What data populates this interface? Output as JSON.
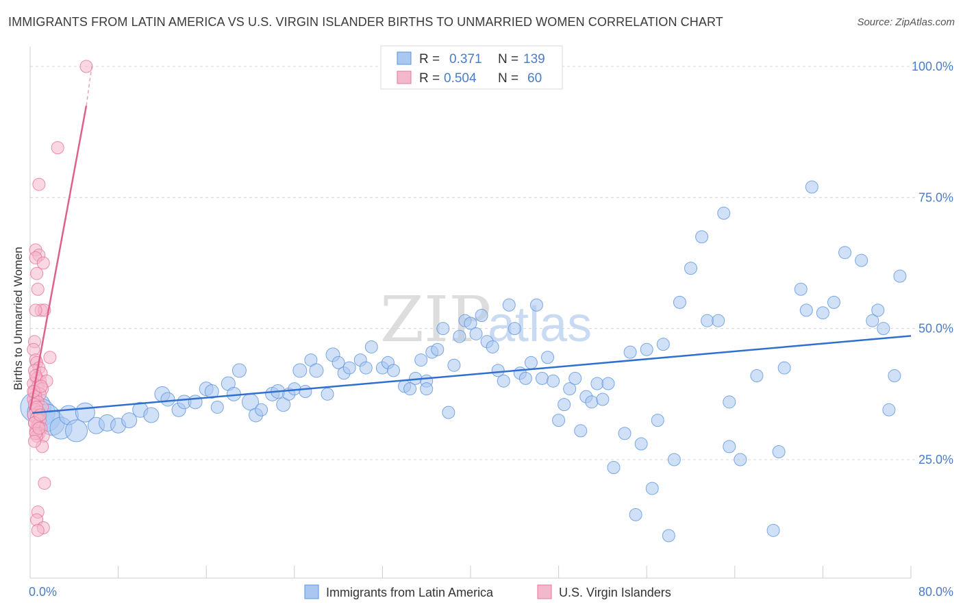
{
  "header": {
    "title": "IMMIGRANTS FROM LATIN AMERICA VS U.S. VIRGIN ISLANDER BIRTHS TO UNMARRIED WOMEN CORRELATION CHART",
    "source": "Source: ZipAtlas.com"
  },
  "watermark": {
    "zip": "ZIP",
    "atlas": "atlas"
  },
  "colors": {
    "blue": "#5b93e0",
    "blue_fill": "#a9c7f0",
    "pink": "#e8739a",
    "pink_fill": "#f4b8cc",
    "tick": "#4a7cc7"
  },
  "legend": {
    "r_label": "R =",
    "n_label": "N =",
    "rows": [
      {
        "r": "0.371",
        "n": "139"
      },
      {
        "r": "0.504",
        "n": "60"
      }
    ]
  },
  "chart_data": {
    "type": "scatter",
    "title": "IMMIGRANTS FROM LATIN AMERICA VS U.S. VIRGIN ISLANDER BIRTHS TO UNMARRIED WOMEN CORRELATION CHART",
    "ylabel": "Births to Unmarried Women",
    "xlim": [
      0,
      80
    ],
    "ylim": [
      0,
      100
    ],
    "x_tick_labels": [
      "0.0%",
      "80.0%"
    ],
    "y_tick_labels": [
      "25.0%",
      "50.0%",
      "75.0%",
      "100.0%"
    ],
    "y_ticks": [
      25,
      50,
      75,
      100
    ],
    "grid": true,
    "legend_placement": "top-center",
    "series": [
      {
        "name": "Immigrants from Latin America",
        "r": 0.371,
        "n": 139,
        "trend": [
          [
            0.2,
            33.9
          ],
          [
            80,
            48.6
          ]
        ],
        "points": [
          [
            0.5,
            35.0,
            22
          ],
          [
            1.0,
            34.0,
            20
          ],
          [
            1.5,
            33.0,
            20
          ],
          [
            2.0,
            32.0,
            18
          ],
          [
            2.8,
            31.0,
            16
          ],
          [
            3.5,
            33.5,
            14
          ],
          [
            4.2,
            30.5,
            16
          ],
          [
            5.0,
            34.0,
            14
          ],
          [
            6.0,
            31.5,
            12
          ],
          [
            7.0,
            32.0,
            12
          ],
          [
            8.0,
            31.5,
            11
          ],
          [
            9.0,
            32.5,
            11
          ],
          [
            10.0,
            34.5,
            11
          ],
          [
            11.0,
            33.5,
            11
          ],
          [
            12.0,
            37.5,
            11
          ],
          [
            12.5,
            36.5,
            10
          ],
          [
            13.5,
            34.5,
            10
          ],
          [
            14.0,
            36.0,
            10
          ],
          [
            15.0,
            36.0,
            10
          ],
          [
            16.0,
            38.5,
            10
          ],
          [
            16.5,
            38.0,
            10
          ],
          [
            17.0,
            35.0,
            9
          ],
          [
            18.0,
            39.5,
            10
          ],
          [
            19.0,
            42.0,
            10
          ],
          [
            18.5,
            37.5,
            10
          ],
          [
            20.0,
            36.0,
            12
          ],
          [
            20.5,
            33.5,
            10
          ],
          [
            21.0,
            34.5,
            9
          ],
          [
            22.0,
            37.5,
            10
          ],
          [
            22.5,
            38.0,
            10
          ],
          [
            23.0,
            35.5,
            10
          ],
          [
            23.5,
            37.5,
            9
          ],
          [
            24.0,
            38.5,
            9
          ],
          [
            25.0,
            38.0,
            9
          ],
          [
            24.5,
            42.0,
            10
          ],
          [
            25.5,
            44.0,
            9
          ],
          [
            26.0,
            42.0,
            10
          ],
          [
            27.0,
            37.5,
            9
          ],
          [
            27.5,
            45.0,
            10
          ],
          [
            28.0,
            43.5,
            9
          ],
          [
            28.5,
            41.5,
            9
          ],
          [
            29.0,
            42.5,
            9
          ],
          [
            30.0,
            44.0,
            9
          ],
          [
            30.5,
            42.5,
            9
          ],
          [
            31.0,
            46.5,
            9
          ],
          [
            32.0,
            42.5,
            9
          ],
          [
            32.5,
            43.5,
            9
          ],
          [
            33.0,
            42.0,
            9
          ],
          [
            34.0,
            39.0,
            9
          ],
          [
            34.5,
            38.5,
            9
          ],
          [
            35.0,
            40.5,
            9
          ],
          [
            35.5,
            44.0,
            9
          ],
          [
            36.0,
            40.0,
            9
          ],
          [
            36.5,
            45.5,
            9
          ],
          [
            37.0,
            46.0,
            9
          ],
          [
            36.0,
            38.5,
            9
          ],
          [
            38.0,
            34.0,
            9
          ],
          [
            37.5,
            50.0,
            9
          ],
          [
            38.5,
            43.0,
            9
          ],
          [
            39.0,
            48.5,
            9
          ],
          [
            39.5,
            51.5,
            9
          ],
          [
            40.0,
            51.0,
            9
          ],
          [
            40.5,
            49.0,
            9
          ],
          [
            41.0,
            52.5,
            9
          ],
          [
            41.5,
            47.5,
            9
          ],
          [
            42.0,
            46.5,
            9
          ],
          [
            42.5,
            42.0,
            9
          ],
          [
            43.0,
            40.0,
            9
          ],
          [
            43.5,
            54.5,
            9
          ],
          [
            44.0,
            50.0,
            9
          ],
          [
            44.5,
            41.5,
            9
          ],
          [
            45.0,
            40.5,
            9
          ],
          [
            45.5,
            43.5,
            9
          ],
          [
            46.0,
            54.5,
            9
          ],
          [
            46.5,
            40.5,
            9
          ],
          [
            47.0,
            44.5,
            9
          ],
          [
            47.5,
            40.0,
            9
          ],
          [
            48.0,
            32.5,
            9
          ],
          [
            48.5,
            35.5,
            9
          ],
          [
            49.0,
            38.5,
            9
          ],
          [
            49.5,
            40.5,
            9
          ],
          [
            50.0,
            30.5,
            9
          ],
          [
            50.5,
            37.0,
            9
          ],
          [
            51.0,
            36.0,
            9
          ],
          [
            51.5,
            39.5,
            9
          ],
          [
            52.0,
            36.5,
            9
          ],
          [
            52.5,
            39.5,
            9
          ],
          [
            53.0,
            23.5,
            9
          ],
          [
            54.0,
            30.0,
            9
          ],
          [
            54.5,
            45.5,
            9
          ],
          [
            55.0,
            14.5,
            9
          ],
          [
            55.5,
            28.0,
            9
          ],
          [
            56.0,
            46.0,
            9
          ],
          [
            56.5,
            19.5,
            9
          ],
          [
            57.0,
            32.5,
            9
          ],
          [
            57.5,
            47.0,
            9
          ],
          [
            58.0,
            10.5,
            9
          ],
          [
            58.5,
            25.0,
            9
          ],
          [
            59.0,
            55.0,
            9
          ],
          [
            60.0,
            61.5,
            9
          ],
          [
            61.0,
            67.5,
            9
          ],
          [
            61.5,
            51.5,
            9
          ],
          [
            62.5,
            51.5,
            9
          ],
          [
            63.0,
            72.0,
            9
          ],
          [
            63.5,
            27.5,
            9
          ],
          [
            63.5,
            36.0,
            9
          ],
          [
            64.5,
            25.0,
            9
          ],
          [
            66.0,
            41.0,
            9
          ],
          [
            67.5,
            11.5,
            9
          ],
          [
            68.0,
            26.5,
            9
          ],
          [
            68.5,
            42.5,
            9
          ],
          [
            70.0,
            57.5,
            9
          ],
          [
            70.5,
            53.5,
            9
          ],
          [
            71.0,
            77.0,
            9
          ],
          [
            72.0,
            53.0,
            9
          ],
          [
            73.0,
            55.0,
            9
          ],
          [
            74.0,
            64.5,
            9
          ],
          [
            75.5,
            63.0,
            9
          ],
          [
            76.5,
            51.5,
            9
          ],
          [
            77.0,
            53.5,
            9
          ],
          [
            77.5,
            50.0,
            9
          ],
          [
            78.0,
            34.5,
            9
          ],
          [
            78.5,
            41.0,
            9
          ],
          [
            79.0,
            60.0,
            9
          ]
        ]
      },
      {
        "name": "U.S. Virgin Islanders",
        "r": 0.504,
        "n": 60,
        "trend": [
          [
            0.0,
            34.5
          ],
          [
            5.1,
            92.5
          ]
        ],
        "trend_ext": [
          [
            5.1,
            92.5
          ],
          [
            5.6,
            100
          ]
        ],
        "points": [
          [
            5.1,
            100,
            9
          ],
          [
            2.5,
            84.5,
            9
          ],
          [
            0.8,
            77.5,
            9
          ],
          [
            0.5,
            65,
            9
          ],
          [
            0.8,
            64,
            9
          ],
          [
            0.5,
            63.5,
            9
          ],
          [
            1.2,
            62.5,
            9
          ],
          [
            0.6,
            60.5,
            9
          ],
          [
            0.7,
            57.5,
            9
          ],
          [
            1.0,
            53.5,
            9
          ],
          [
            1.3,
            53.5,
            9
          ],
          [
            0.5,
            53.5,
            9
          ],
          [
            0.4,
            47.5,
            9
          ],
          [
            0.3,
            46.0,
            9
          ],
          [
            1.8,
            44.5,
            9
          ],
          [
            0.5,
            44.0,
            9
          ],
          [
            0.6,
            43.5,
            9
          ],
          [
            0.8,
            42.5,
            9
          ],
          [
            0.4,
            42.0,
            9
          ],
          [
            1.0,
            41.5,
            9
          ],
          [
            0.6,
            40.5,
            9
          ],
          [
            0.9,
            40.0,
            9
          ],
          [
            0.3,
            39.5,
            9
          ],
          [
            1.5,
            40.0,
            9
          ],
          [
            0.7,
            39.0,
            9
          ],
          [
            1.1,
            38.5,
            9
          ],
          [
            0.4,
            38.0,
            9
          ],
          [
            0.9,
            37.5,
            9
          ],
          [
            0.5,
            37.0,
            9
          ],
          [
            0.3,
            36.5,
            9
          ],
          [
            0.7,
            36.0,
            9
          ],
          [
            0.4,
            35.5,
            9
          ],
          [
            1.1,
            35.0,
            9
          ],
          [
            0.5,
            34.5,
            9
          ],
          [
            0.8,
            34.0,
            9
          ],
          [
            0.3,
            33.5,
            9
          ],
          [
            0.6,
            33.0,
            9
          ],
          [
            0.9,
            32.5,
            9
          ],
          [
            0.4,
            32.0,
            9
          ],
          [
            0.7,
            31.5,
            9
          ],
          [
            1.0,
            31.0,
            9
          ],
          [
            0.5,
            30.5,
            9
          ],
          [
            0.8,
            30.0,
            9
          ],
          [
            1.2,
            29.5,
            9
          ],
          [
            0.6,
            29.5,
            9
          ],
          [
            1.1,
            27.5,
            9
          ],
          [
            1.3,
            20.5,
            9
          ],
          [
            0.7,
            15.0,
            9
          ],
          [
            0.6,
            13.5,
            9
          ],
          [
            1.2,
            12.0,
            9
          ],
          [
            0.7,
            11.5,
            9
          ],
          [
            0.4,
            32.0,
            9
          ],
          [
            0.5,
            30.0,
            9
          ],
          [
            0.3,
            38.0,
            9
          ],
          [
            0.6,
            35.0,
            9
          ],
          [
            0.8,
            31.0,
            9
          ],
          [
            0.4,
            28.5,
            9
          ],
          [
            0.9,
            33.5,
            9
          ],
          [
            0.5,
            41.0,
            9
          ],
          [
            1.0,
            39.0,
            9
          ]
        ]
      }
    ]
  },
  "bottom_legend": [
    {
      "label": "Immigrants from Latin America"
    },
    {
      "label": "U.S. Virgin Islanders"
    }
  ]
}
